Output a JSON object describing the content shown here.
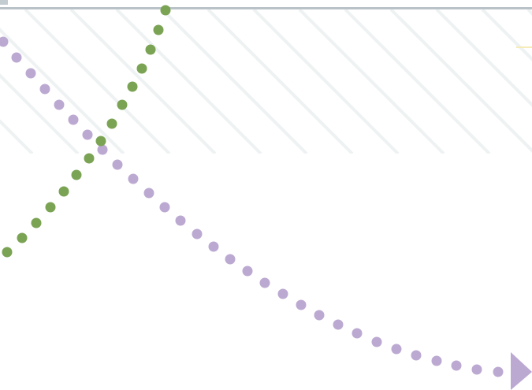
{
  "colors": {
    "background": "#ffffff",
    "top_rule": "#b9c3c7",
    "corner_mark": "#c3ccd0",
    "hatch": "#eef2f3",
    "accent_line": "#f6ecb8",
    "purple_path": "#bca9d2",
    "green_path": "#7ba354"
  },
  "icons": {
    "arrow_head": "triangle-arrow-head-icon"
  },
  "paths": [
    {
      "name": "purple-dotted-curve",
      "color_key": "purple_path",
      "style": "dotted",
      "ends_with": "arrow_head"
    },
    {
      "name": "green-dotted-curve",
      "color_key": "green_path",
      "style": "dotted"
    }
  ]
}
